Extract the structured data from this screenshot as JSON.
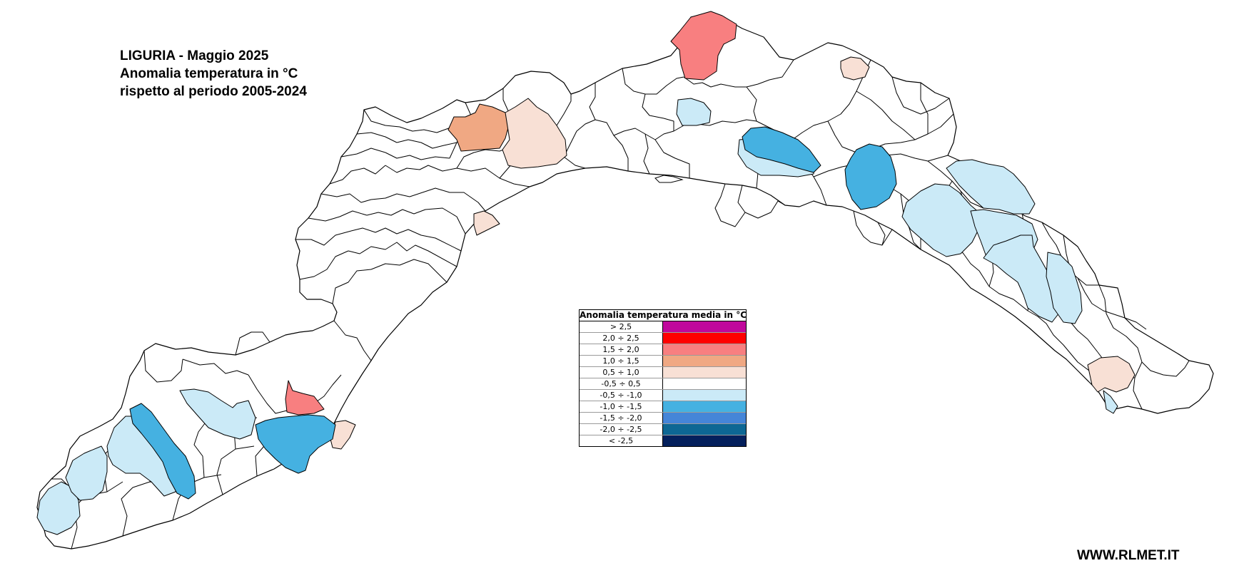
{
  "title": {
    "line1": "LIGURIA - Maggio 2025",
    "line2": "Anomalia temperatura in °C",
    "line3": "rispetto al periodo 2005-2024"
  },
  "legend": {
    "title": "Anomalia temperatura media in °C",
    "classes": [
      {
        "label": "> 2,5",
        "color": "#c0089c"
      },
      {
        "label": "2,0 ÷ 2,5",
        "color": "#ff0000"
      },
      {
        "label": "1,5 ÷ 2,0",
        "color": "#f87f80"
      },
      {
        "label": "1,0 ÷ 1,5",
        "color": "#f0a883"
      },
      {
        "label": "0,5 ÷ 1,0",
        "color": "#f8e0d5"
      },
      {
        "label": "-0,5 ÷ 0,5",
        "color": "#ffffff"
      },
      {
        "label": "-0,5 ÷ -1,0",
        "color": "#cbeaf7"
      },
      {
        "label": "-1,0 ÷ -1,5",
        "color": "#45b1e1"
      },
      {
        "label": "-1,5 ÷ -2,0",
        "color": "#4585d8"
      },
      {
        "label": "-2,0 ÷ -2,5",
        "color": "#0d6794"
      },
      {
        "label": "< -2,5",
        "color": "#04205c"
      }
    ]
  },
  "map": {
    "region": "Liguria",
    "outline_color": "#000000",
    "default_fill": "#ffffff"
  },
  "website": "WWW.RLMET.IT"
}
